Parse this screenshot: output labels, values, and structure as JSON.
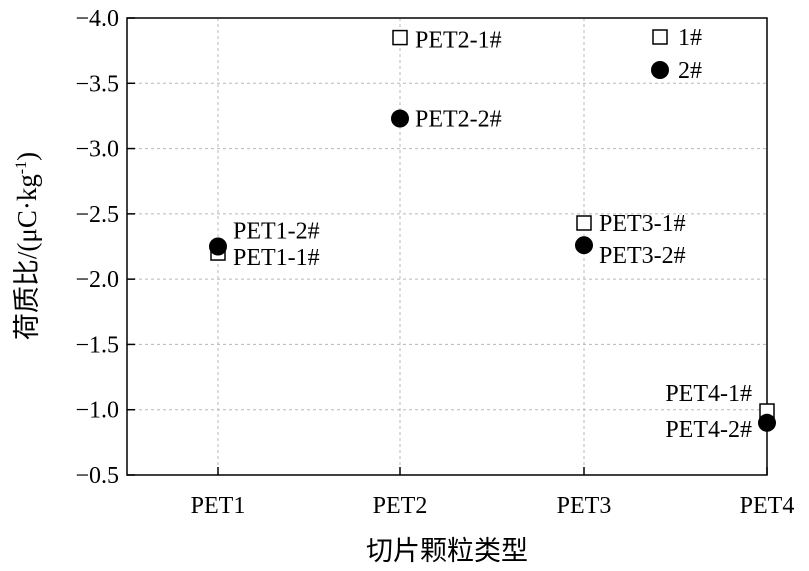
{
  "chart_data": {
    "type": "scatter",
    "title": "",
    "xlabel": "切片颗粒类型",
    "ylabel": "荷质比/(μC·kg",
    "ylabel_sup": "-1",
    "ylabel_close": ")",
    "categories": [
      "PET1",
      "PET2",
      "PET3",
      "PET4"
    ],
    "ylim": [
      -0.5,
      -4.0
    ],
    "yticks": [
      -4.0,
      -3.5,
      -3.0,
      -2.5,
      -2.0,
      -1.5,
      -1.0,
      -0.5
    ],
    "ytick_labels": [
      "−4.0",
      "−3.5",
      "−3.0",
      "−2.5",
      "−2.0",
      "−1.5",
      "−1.0",
      "−0.5"
    ],
    "grid": true,
    "legend_position": "top-right",
    "series": [
      {
        "name": "1#",
        "marker": "open-square",
        "color": "#000000",
        "points": [
          {
            "category": "PET1",
            "y": -2.2,
            "label": "PET1-1#"
          },
          {
            "category": "PET2",
            "y": -3.85,
            "label": "PET2-1#"
          },
          {
            "category": "PET3",
            "y": -2.43,
            "label": "PET3-1#"
          },
          {
            "category": "PET4",
            "y": -0.99,
            "label": "PET4-1#"
          }
        ]
      },
      {
        "name": "2#",
        "marker": "filled-circle",
        "color": "#000000",
        "points": [
          {
            "category": "PET1",
            "y": -2.25,
            "label": "PET1-2#"
          },
          {
            "category": "PET2",
            "y": -3.23,
            "label": "PET2-2#"
          },
          {
            "category": "PET3",
            "y": -2.26,
            "label": "PET3-2#"
          },
          {
            "category": "PET4",
            "y": -0.9,
            "label": "PET4-2#"
          }
        ]
      }
    ]
  }
}
